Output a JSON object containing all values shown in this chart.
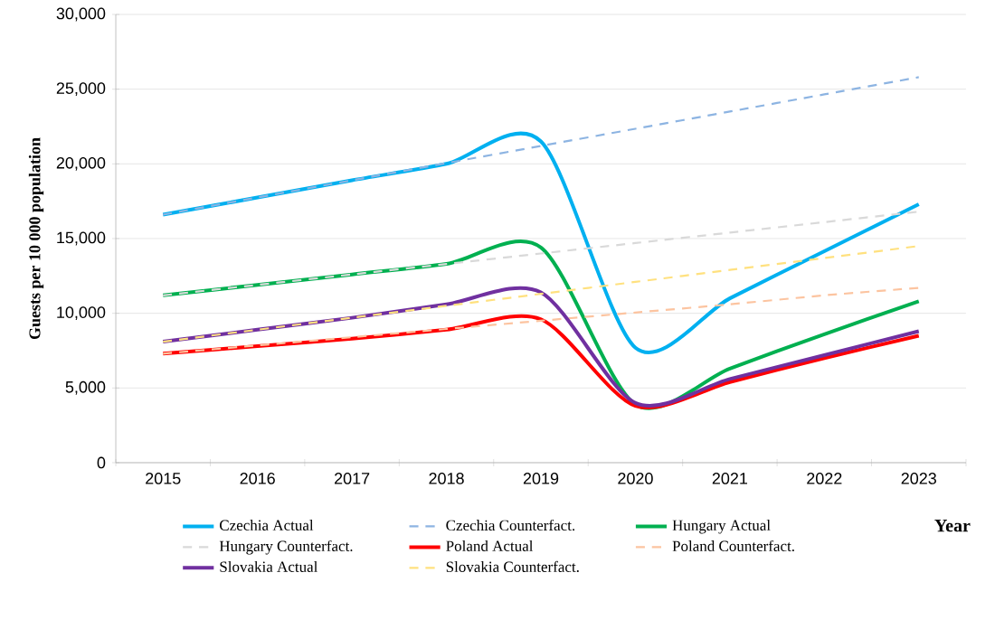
{
  "chart_data": {
    "type": "line",
    "ylabel": "Guests per 10 000 population",
    "xlabel": "Year",
    "categories": [
      "2015",
      "2016",
      "2017",
      "2018",
      "2019",
      "2020",
      "2021",
      "2022",
      "2023"
    ],
    "ylim": [
      0,
      30000
    ],
    "yticks": [
      {
        "value": 0,
        "label": "0"
      },
      {
        "value": 5000,
        "label": "5,000"
      },
      {
        "value": 10000,
        "label": "10,000"
      },
      {
        "value": 15000,
        "label": "15,000"
      },
      {
        "value": 20000,
        "label": "20,000"
      },
      {
        "value": 25000,
        "label": "25,000"
      },
      {
        "value": 30000,
        "label": "30,000"
      }
    ],
    "grid": "y",
    "legend": "bottom",
    "marker": "none",
    "series": [
      {
        "name": "Czechia Actual",
        "color": "#00b0f0",
        "line_style": "solid",
        "values": [
          16600,
          17750,
          18900,
          20000,
          21500,
          7700,
          11000,
          14150,
          17300
        ]
      },
      {
        "name": "Czechia Counterfact.",
        "color": "#8db4e2",
        "line_style": "dashed",
        "values": [
          16600,
          17750,
          18900,
          20050,
          21200,
          22350,
          23500,
          24650,
          25800
        ]
      },
      {
        "name": "Hungary Actual",
        "color": "#00b050",
        "line_style": "solid",
        "values": [
          11200,
          11900,
          12600,
          13300,
          14400,
          3900,
          6300,
          8600,
          10800
        ]
      },
      {
        "name": "Hungary Counterfact.",
        "color": "#d9d9d9",
        "line_style": "dashed",
        "values": [
          11200,
          11900,
          12600,
          13300,
          14000,
          14700,
          15400,
          16100,
          16800
        ]
      },
      {
        "name": "Poland Actual",
        "color": "#ff0000",
        "line_style": "solid",
        "values": [
          7300,
          7800,
          8300,
          8900,
          9600,
          3800,
          5400,
          7000,
          8500
        ]
      },
      {
        "name": "Poland Counterfact.",
        "color": "#fcc4a0",
        "line_style": "dashed",
        "values": [
          7300,
          7850,
          8400,
          8950,
          9500,
          10050,
          10600,
          11200,
          11700
        ]
      },
      {
        "name": "Slovakia Actual",
        "color": "#7030a0",
        "line_style": "solid",
        "values": [
          8100,
          8900,
          9700,
          10600,
          11400,
          4000,
          5600,
          7200,
          8800
        ]
      },
      {
        "name": "Slovakia Counterfact.",
        "color": "#ffe17f",
        "line_style": "dashed",
        "values": [
          8100,
          8900,
          9700,
          10500,
          11300,
          12100,
          12900,
          13700,
          14500
        ]
      }
    ]
  }
}
